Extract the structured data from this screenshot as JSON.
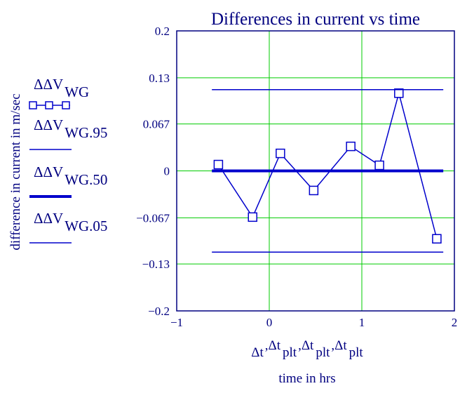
{
  "chart_data": {
    "type": "line",
    "title": "Differences in current vs time",
    "ylabel": "difference in current in m/sec",
    "xlabel_top": "Δt, Δt plt, Δt plt, Δt plt",
    "xlabel": "time in hrs",
    "xlim": [
      -1,
      2
    ],
    "ylim": [
      -0.2,
      0.2
    ],
    "x_ticks": [
      -1,
      0,
      1,
      2
    ],
    "x_tick_labels": [
      "−1",
      "0",
      "1",
      "2"
    ],
    "y_ticks": [
      0.2,
      0.133,
      0.067,
      0,
      -0.067,
      -0.133,
      -0.2
    ],
    "y_tick_labels": [
      "0.2",
      "0.13",
      "0.067",
      "0",
      "−0.067",
      "−0.13",
      "−0.2"
    ],
    "grid": true,
    "grid_color": "#00cc00",
    "line_color": "#0000cc",
    "text_color": "#000080",
    "legend": {
      "placement": "left",
      "entries": [
        {
          "base": "ΔΔV",
          "sub": "WG",
          "style": "line-square-markers"
        },
        {
          "base": "ΔΔV",
          "sub": "WG.95",
          "style": "thin-line"
        },
        {
          "base": "ΔΔV",
          "sub": "WG.50",
          "style": "thick-line"
        },
        {
          "base": "ΔΔV",
          "sub": "WG.05",
          "style": "thin-line"
        }
      ]
    },
    "xlabel_parts": [
      {
        "base": "Δt",
        "sub": ""
      },
      {
        "base": "Δt",
        "sub": "plt"
      },
      {
        "base": "Δt",
        "sub": "plt"
      },
      {
        "base": "Δt",
        "sub": "plt"
      }
    ],
    "series": [
      {
        "name": "ΔΔV WG",
        "x": [
          -0.55,
          -0.18,
          0.12,
          0.48,
          0.88,
          1.19,
          1.4,
          1.81
        ],
        "y": [
          0.009,
          -0.066,
          0.025,
          -0.028,
          0.035,
          0.008,
          0.111,
          -0.097
        ],
        "markers": true
      },
      {
        "name": "ΔΔV WG.95",
        "x": [
          -0.62,
          1.88
        ],
        "y": [
          0.116,
          0.116
        ],
        "width": "thin"
      },
      {
        "name": "ΔΔV WG.50",
        "x": [
          -0.62,
          1.88
        ],
        "y": [
          0,
          0
        ],
        "width": "thick"
      },
      {
        "name": "ΔΔV WG.05",
        "x": [
          -0.62,
          1.88
        ],
        "y": [
          -0.116,
          -0.116
        ],
        "width": "thin"
      }
    ]
  }
}
